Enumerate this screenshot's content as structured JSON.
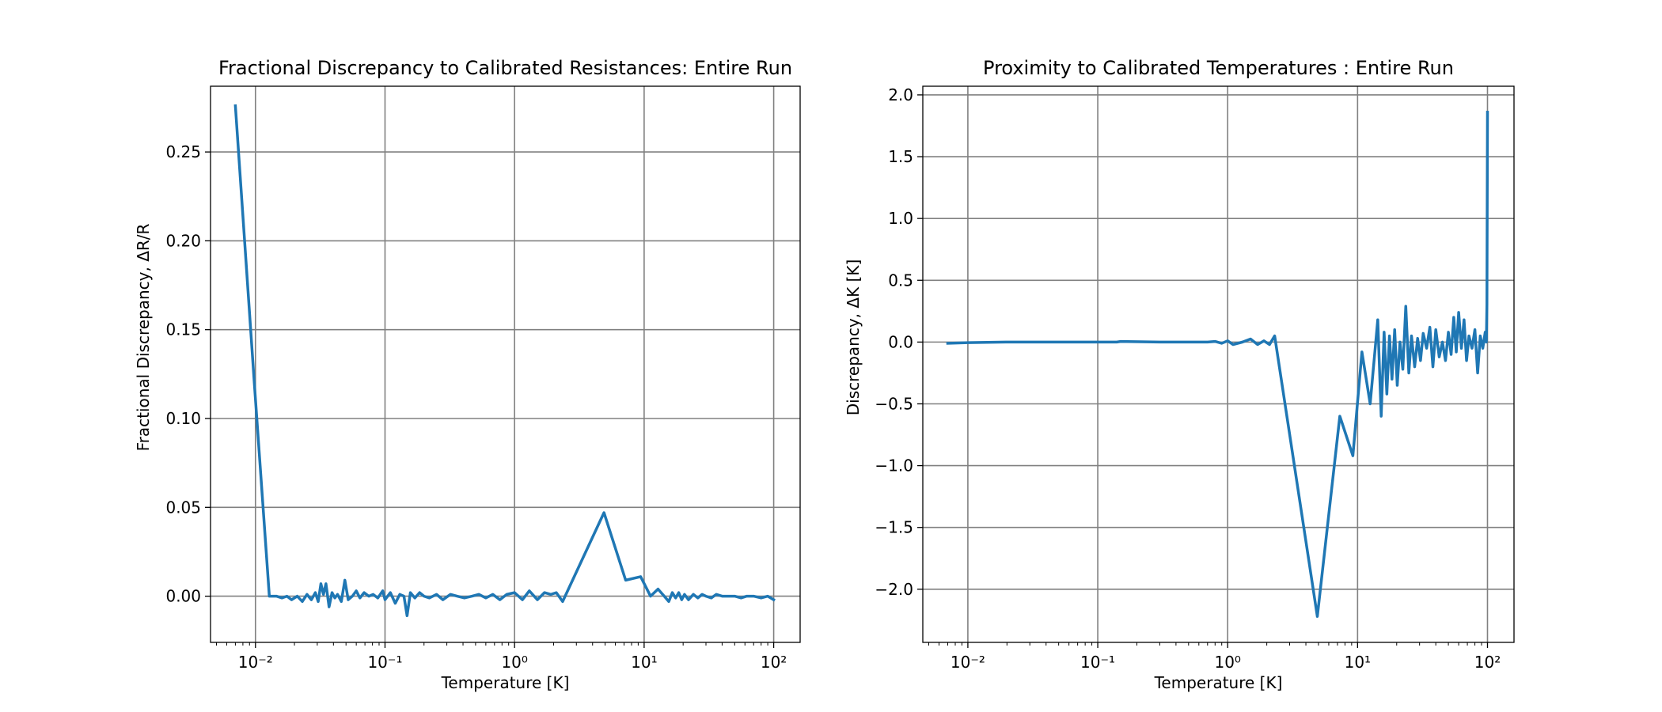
{
  "chart_data": [
    {
      "type": "line",
      "title": "Fractional Discrepancy to Calibrated Resistances: Entire Run",
      "xlabel": "Temperature [K]",
      "ylabel": "Fractional Discrepancy, ΔR/R",
      "xscale": "log",
      "xlim": [
        0.0045,
        160
      ],
      "ylim": [
        -0.026,
        0.287
      ],
      "grid": true,
      "xticks": [
        0.01,
        0.1,
        1,
        10,
        100
      ],
      "xticklabels": [
        "10⁻²",
        "10⁻¹",
        "10⁰",
        "10¹",
        "10²"
      ],
      "yticks": [
        0.0,
        0.05,
        0.1,
        0.15,
        0.2,
        0.25
      ],
      "yticklabels": [
        "0.00",
        "0.05",
        "0.10",
        "0.15",
        "0.20",
        "0.25"
      ],
      "series": [
        {
          "color": "#1f77b4",
          "x": [
            0.007,
            0.0098,
            0.0128,
            0.0145,
            0.016,
            0.0175,
            0.019,
            0.021,
            0.023,
            0.025,
            0.027,
            0.029,
            0.0305,
            0.032,
            0.0335,
            0.035,
            0.037,
            0.039,
            0.041,
            0.043,
            0.046,
            0.049,
            0.052,
            0.056,
            0.06,
            0.064,
            0.069,
            0.075,
            0.081,
            0.088,
            0.096,
            0.1,
            0.11,
            0.12,
            0.13,
            0.14,
            0.148,
            0.157,
            0.17,
            0.185,
            0.2,
            0.22,
            0.25,
            0.28,
            0.32,
            0.36,
            0.41,
            0.47,
            0.53,
            0.6,
            0.68,
            0.77,
            0.87,
            1.0,
            1.15,
            1.3,
            1.5,
            1.7,
            1.9,
            2.1,
            2.35,
            4.9,
            7.2,
            9.4,
            11.2,
            12.8,
            14.3,
            15.5,
            16.5,
            17.5,
            18.5,
            19.5,
            20.5,
            22,
            24,
            26,
            28,
            30,
            33,
            36,
            40,
            45,
            50,
            56,
            62,
            70,
            80,
            90,
            100
          ],
          "values": [
            0.276,
            0.12,
            0.0,
            0.0,
            -0.001,
            0.0,
            -0.002,
            0.0,
            -0.003,
            0.001,
            -0.002,
            0.002,
            -0.003,
            0.007,
            0.001,
            0.007,
            -0.006,
            0.002,
            -0.001,
            0.001,
            -0.003,
            0.009,
            -0.002,
            0.0,
            0.003,
            -0.001,
            0.002,
            0.0,
            0.001,
            -0.001,
            0.003,
            -0.002,
            0.002,
            -0.004,
            0.001,
            0.0,
            -0.011,
            0.002,
            -0.001,
            0.002,
            0.0,
            -0.001,
            0.001,
            -0.002,
            0.001,
            0.0,
            -0.001,
            0.0,
            0.001,
            -0.001,
            0.001,
            -0.002,
            0.001,
            0.002,
            -0.002,
            0.003,
            -0.002,
            0.002,
            0.001,
            0.002,
            -0.003,
            0.047,
            0.009,
            0.011,
            0.0,
            0.004,
            0.0,
            -0.003,
            0.002,
            -0.001,
            0.002,
            -0.002,
            0.001,
            -0.002,
            0.001,
            -0.001,
            0.001,
            0.0,
            -0.001,
            0.001,
            0.0,
            0.0,
            0.0,
            -0.001,
            0.0,
            0.0,
            -0.001,
            0.0,
            -0.002
          ]
        }
      ]
    },
    {
      "type": "line",
      "title": "Proximity to Calibrated Temperatures : Entire Run",
      "xlabel": "Temperature [K]",
      "ylabel": "Discrepancy, ΔK [K]",
      "xscale": "log",
      "xlim": [
        0.0045,
        160
      ],
      "ylim": [
        -2.43,
        2.07
      ],
      "grid": true,
      "xticks": [
        0.01,
        0.1,
        1,
        10,
        100
      ],
      "xticklabels": [
        "10⁻²",
        "10⁻¹",
        "10⁰",
        "10¹",
        "10²"
      ],
      "yticks": [
        -2.0,
        -1.5,
        -1.0,
        -0.5,
        0.0,
        0.5,
        1.0,
        1.5,
        2.0
      ],
      "yticklabels": [
        "−2.0",
        "−1.5",
        "−1.0",
        "−0.5",
        "0.0",
        "0.5",
        "1.0",
        "1.5",
        "2.0"
      ],
      "series": [
        {
          "color": "#1f77b4",
          "x": [
            0.007,
            0.01,
            0.02,
            0.05,
            0.1,
            0.14,
            0.15,
            0.3,
            0.5,
            0.7,
            0.8,
            0.9,
            1.0,
            1.1,
            1.3,
            1.5,
            1.7,
            1.9,
            2.1,
            2.3,
            4.9,
            7.3,
            9.2,
            10.8,
            12.5,
            14.3,
            15.2,
            16.0,
            16.8,
            17.6,
            18.4,
            19.3,
            20.2,
            21.2,
            22.3,
            23.5,
            24.8,
            26.0,
            27.5,
            29.0,
            30.5,
            32.0,
            34.0,
            36.0,
            38.0,
            40.0,
            42.5,
            45.0,
            47.5,
            50.0,
            52.5,
            55.0,
            57.5,
            60.0,
            63.0,
            66.0,
            69.0,
            72.0,
            76.0,
            80.0,
            84.0,
            88.0,
            92.0,
            96.0,
            98.0,
            99.0,
            100.0
          ],
          "values": [
            -0.01,
            -0.005,
            0.0,
            0.0,
            0.0,
            0.0,
            0.005,
            0.0,
            0.0,
            0.0,
            0.005,
            -0.01,
            0.01,
            -0.02,
            0.0,
            0.025,
            -0.02,
            0.01,
            -0.02,
            0.05,
            -2.22,
            -0.6,
            -0.92,
            -0.08,
            -0.5,
            0.18,
            -0.6,
            0.08,
            -0.42,
            0.05,
            -0.3,
            0.1,
            -0.35,
            0.0,
            -0.22,
            0.29,
            -0.25,
            0.05,
            -0.2,
            0.03,
            -0.15,
            0.07,
            -0.05,
            0.12,
            -0.2,
            0.1,
            -0.12,
            0.0,
            -0.15,
            0.08,
            -0.1,
            0.2,
            -0.08,
            0.24,
            -0.05,
            0.18,
            -0.15,
            0.05,
            -0.05,
            0.1,
            -0.25,
            0.05,
            -0.05,
            0.08,
            0.0,
            0.3,
            1.86
          ]
        }
      ]
    }
  ]
}
